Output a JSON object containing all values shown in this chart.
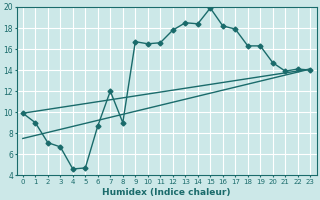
{
  "xlabel": "Humidex (Indice chaleur)",
  "ylabel": "",
  "xlim": [
    -0.5,
    23.5
  ],
  "ylim": [
    4,
    20
  ],
  "yticks": [
    4,
    6,
    8,
    10,
    12,
    14,
    16,
    18,
    20
  ],
  "xticks": [
    0,
    1,
    2,
    3,
    4,
    5,
    6,
    7,
    8,
    9,
    10,
    11,
    12,
    13,
    14,
    15,
    16,
    17,
    18,
    19,
    20,
    21,
    22,
    23
  ],
  "bg_color": "#cce8e8",
  "grid_color": "#ffffff",
  "line_color": "#1a6b6b",
  "lines": [
    {
      "x": [
        0,
        1,
        2,
        3,
        4,
        5,
        6,
        7,
        8,
        9,
        10,
        11,
        12,
        13,
        14,
        15,
        16,
        17,
        18,
        19,
        20,
        21,
        22,
        23
      ],
      "y": [
        9.9,
        9.0,
        7.1,
        6.7,
        4.6,
        4.7,
        8.7,
        12.0,
        9.0,
        16.7,
        16.5,
        16.6,
        17.8,
        18.5,
        18.4,
        19.9,
        18.2,
        17.9,
        16.3,
        16.3,
        14.7,
        13.9,
        14.1,
        14.0
      ],
      "has_markers": true
    },
    {
      "x": [
        0,
        23
      ],
      "y": [
        9.9,
        14.1
      ],
      "has_markers": false
    },
    {
      "x": [
        0,
        23
      ],
      "y": [
        7.5,
        14.1
      ],
      "has_markers": false
    }
  ]
}
